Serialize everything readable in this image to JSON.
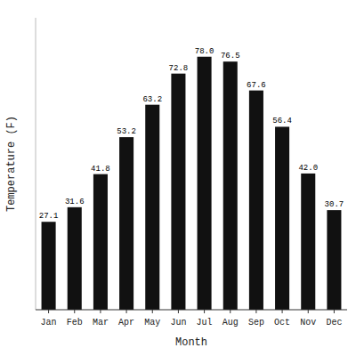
{
  "chart_data": {
    "type": "bar",
    "categories": [
      "Jan",
      "Feb",
      "Mar",
      "Apr",
      "May",
      "Jun",
      "Jul",
      "Aug",
      "Sep",
      "Oct",
      "Nov",
      "Dec"
    ],
    "values": [
      27.1,
      31.6,
      41.8,
      53.2,
      63.2,
      72.8,
      78.0,
      76.5,
      67.6,
      56.4,
      42.0,
      30.7
    ],
    "value_labels": [
      "27.1",
      "31.6",
      "41.8",
      "53.2",
      "63.2",
      "72.8",
      "78.0",
      "76.5",
      "67.6",
      "56.4",
      "42.0",
      "30.7"
    ],
    "color": "#111111",
    "xlabel": "Month",
    "ylabel": "Temperature (F)",
    "ylim": [
      0,
      90
    ],
    "data_labels": true,
    "tick_labels": "x",
    "grid": false
  }
}
